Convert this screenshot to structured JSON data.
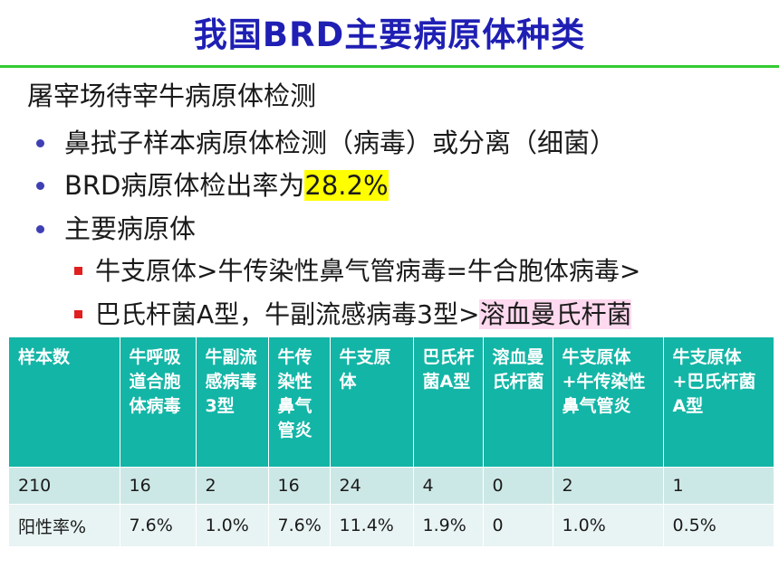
{
  "title": "我国BRD主要病原体种类",
  "heading": "屠宰场待宰牛病原体检测",
  "bullets": {
    "b1": "鼻拭子样本病原体检测（病毒）或分离（细菌）",
    "b2_prefix": "BRD病原体检出率为",
    "b2_value": "28.2%",
    "b3": "主要病原体"
  },
  "sub": {
    "s1": "牛支原体>牛传染性鼻气管病毒=牛合胞体病毒>",
    "s2_prefix": "巴氏杆菌A型，牛副流感病毒3型>",
    "s2_highlight": "溶血曼氏杆菌"
  },
  "table": {
    "headers": [
      "样本数",
      "牛呼吸道合胞体病毒",
      "牛副流感病毒3型",
      "牛传染性鼻气管炎",
      "牛支原体",
      "巴氏杆菌A型",
      "溶血曼氏杆菌",
      "牛支原体+牛传染性鼻气管炎",
      "牛支原体+巴氏杆菌A型"
    ],
    "row1": [
      "210",
      "16",
      "2",
      "16",
      "24",
      "4",
      "0",
      "2",
      "1"
    ],
    "row2": [
      "阳性率%",
      "7.6%",
      "1.0%",
      "7.6%",
      "11.4%",
      "1.9%",
      "0",
      "1.0%",
      "0.5%"
    ]
  },
  "colors": {
    "title": "#1f1fb4",
    "rule": "#33cc33",
    "table_header": "#13b5a6",
    "highlight": "#ffff00",
    "highlight_pink": "#ffd9ef",
    "bullet": "#3f3fb4",
    "sub_bullet": "#e02020"
  }
}
